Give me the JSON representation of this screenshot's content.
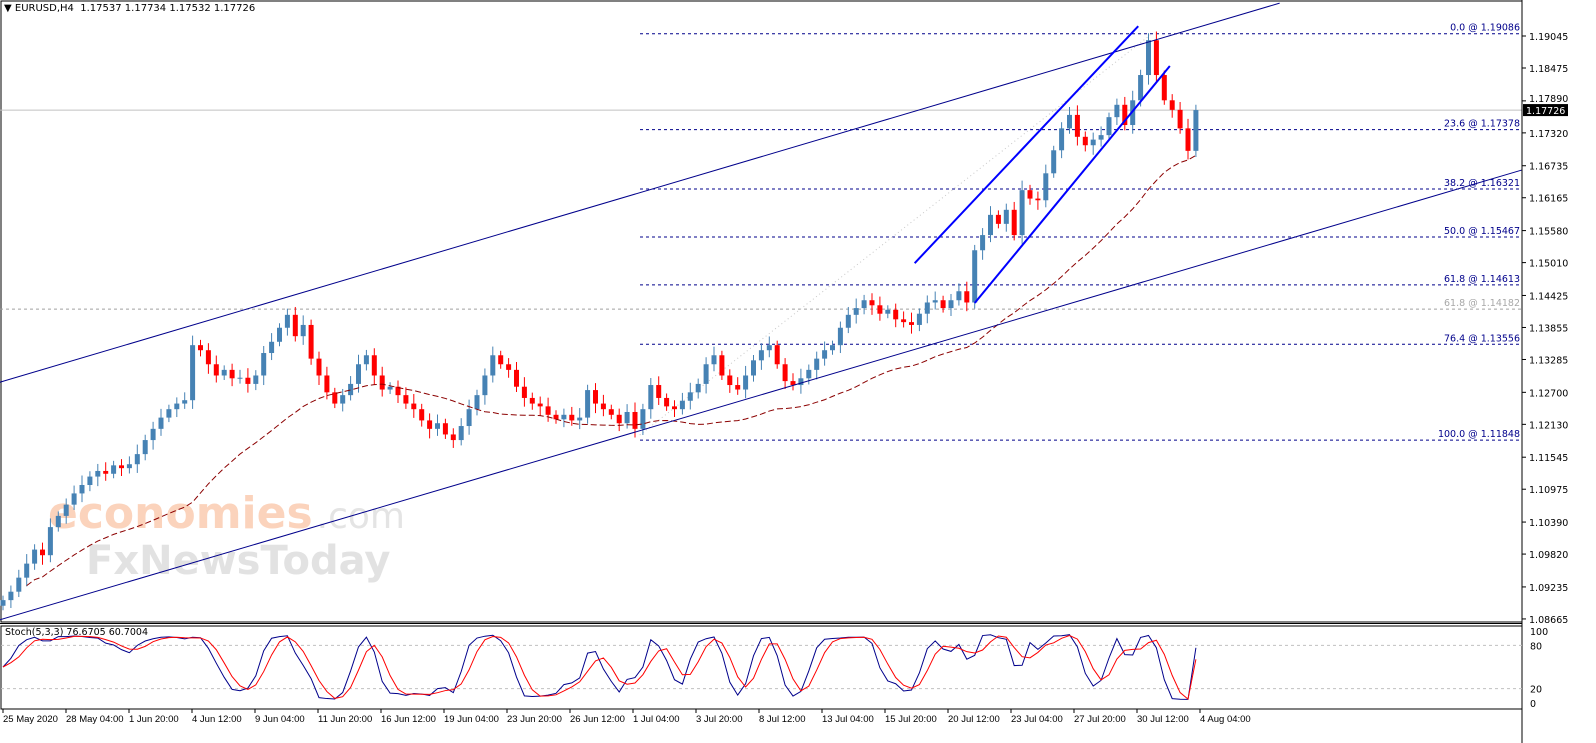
{
  "header": {
    "symbol": "EURUSD,H4",
    "ohlc": "1.17537 1.17734 1.17532 1.17726"
  },
  "watermark": {
    "line1": "economies",
    "line1_suffix": ".com",
    "line2": "FxNewsToday"
  },
  "colors": {
    "bull": "#4682B4",
    "bear": "#FF0000",
    "ma": "#8B0000",
    "channel": "#00008B",
    "inner_channel": "#0000FF",
    "fib": "#00008B",
    "stoch_main": "#00008B",
    "stoch_signal": "#FF0000"
  },
  "chart_data": {
    "type": "candlestick",
    "title": "EURUSD,H4",
    "yticks": [
      "1.19045",
      "1.18475",
      "1.17890",
      "1.17320",
      "1.16735",
      "1.16165",
      "1.15580",
      "1.15010",
      "1.14425",
      "1.13855",
      "1.13285",
      "1.12700",
      "1.12130",
      "1.11545",
      "1.10975",
      "1.10390",
      "1.09820",
      "1.09235",
      "1.08665"
    ],
    "xticks": [
      "25 May 2020",
      "28 May 04:00",
      "1 Jun 20:00",
      "4 Jun 12:00",
      "9 Jun 04:00",
      "11 Jun 20:00",
      "16 Jun 12:00",
      "19 Jun 04:00",
      "23 Jun 20:00",
      "26 Jun 12:00",
      "1 Jul 04:00",
      "3 Jul 20:00",
      "8 Jul 12:00",
      "13 Jul 04:00",
      "15 Jul 20:00",
      "20 Jul 12:00",
      "23 Jul 04:00",
      "27 Jul 20:00",
      "30 Jul 12:00",
      "4 Aug 04:00"
    ],
    "ylim": [
      1.08665,
      1.19045
    ],
    "current_price": "1.17726",
    "closes": [
      1.09,
      1.0915,
      1.094,
      1.0965,
      1.099,
      1.098,
      1.103,
      1.105,
      1.107,
      1.109,
      1.1105,
      1.112,
      1.113,
      1.1125,
      1.114,
      1.1135,
      1.1142,
      1.116,
      1.1185,
      1.1205,
      1.1225,
      1.124,
      1.125,
      1.1256,
      1.1354,
      1.1345,
      1.132,
      1.13,
      1.131,
      1.1295,
      1.1296,
      1.1285,
      1.13,
      1.134,
      1.136,
      1.1385,
      1.1408,
      1.137,
      1.139,
      1.133,
      1.13,
      1.127,
      1.125,
      1.1265,
      1.1285,
      1.132,
      1.1336,
      1.13,
      1.1275,
      1.128,
      1.1265,
      1.125,
      1.124,
      1.122,
      1.1205,
      1.1215,
      1.1195,
      1.1185,
      1.121,
      1.124,
      1.1265,
      1.13,
      1.1336,
      1.132,
      1.131,
      1.128,
      1.126,
      1.125,
      1.1245,
      1.123,
      1.1222,
      1.123,
      1.122,
      1.1225,
      1.1274,
      1.125,
      1.124,
      1.123,
      1.1215,
      1.1235,
      1.1205,
      1.124,
      1.1283,
      1.126,
      1.1245,
      1.124,
      1.1255,
      1.127,
      1.1285,
      1.132,
      1.1336,
      1.13,
      1.1283,
      1.1275,
      1.13,
      1.1327,
      1.1345,
      1.1354,
      1.132,
      1.129,
      1.1283,
      1.1295,
      1.131,
      1.133,
      1.1345,
      1.1354,
      1.1385,
      1.1408,
      1.142,
      1.1434,
      1.1425,
      1.141,
      1.1417,
      1.14,
      1.1395,
      1.139,
      1.141,
      1.143,
      1.1434,
      1.142,
      1.1434,
      1.145,
      1.143,
      1.1523,
      1.155,
      1.1586,
      1.157,
      1.1595,
      1.155,
      1.163,
      1.1615,
      1.1612,
      1.166,
      1.1701,
      1.174,
      1.1764,
      1.1725,
      1.171,
      1.172,
      1.1728,
      1.176,
      1.1782,
      1.1746,
      1.179,
      1.1835,
      1.1897,
      1.1835,
      1.179,
      1.1773,
      1.174,
      1.17,
      1.17726
    ],
    "fib_levels": [
      {
        "label": "0.0 @ 1.19086",
        "price": 1.19086
      },
      {
        "label": "23.6 @ 1.17378",
        "price": 1.17378
      },
      {
        "label": "38.2 @ 1.16321",
        "price": 1.16321
      },
      {
        "label": "50.0 @ 1.15467",
        "price": 1.15467
      },
      {
        "label": "61.8 @ 1.14613",
        "price": 1.14613
      },
      {
        "label": "76.4 @ 1.13556",
        "price": 1.13556
      },
      {
        "label": "100.0 @ 1.11848",
        "price": 1.11848
      }
    ],
    "extra_level": {
      "label": "61.8 @ 1.14182",
      "price": 1.14182
    },
    "trendlines": [
      {
        "name": "upper-channel",
        "from": [
          -0.4,
          1.1288
        ],
        "to": [
          161.6,
          1.1963
        ]
      },
      {
        "name": "lower-channel",
        "from": [
          -0.4,
          1.0865
        ],
        "to": [
          192.3,
          1.1666
        ]
      },
      {
        "name": "inner-channel-upper",
        "from": [
          115.4,
          1.15
        ],
        "to": [
          143.7,
          1.1922
        ]
      },
      {
        "name": "inner-channel-lower",
        "from": [
          123,
          1.1429
        ],
        "to": [
          147.7,
          1.1851
        ]
      }
    ],
    "fib_base_line": {
      "from": [
        80.6,
        1.1194
      ],
      "to": [
        145.2,
        1.1906
      ]
    },
    "stochastic": {
      "label": "Stoch(5,3,3) 76.6705 60.7004",
      "levels": [
        "100",
        "80",
        "20",
        "0"
      ],
      "ylim": [
        0,
        100
      ]
    }
  }
}
